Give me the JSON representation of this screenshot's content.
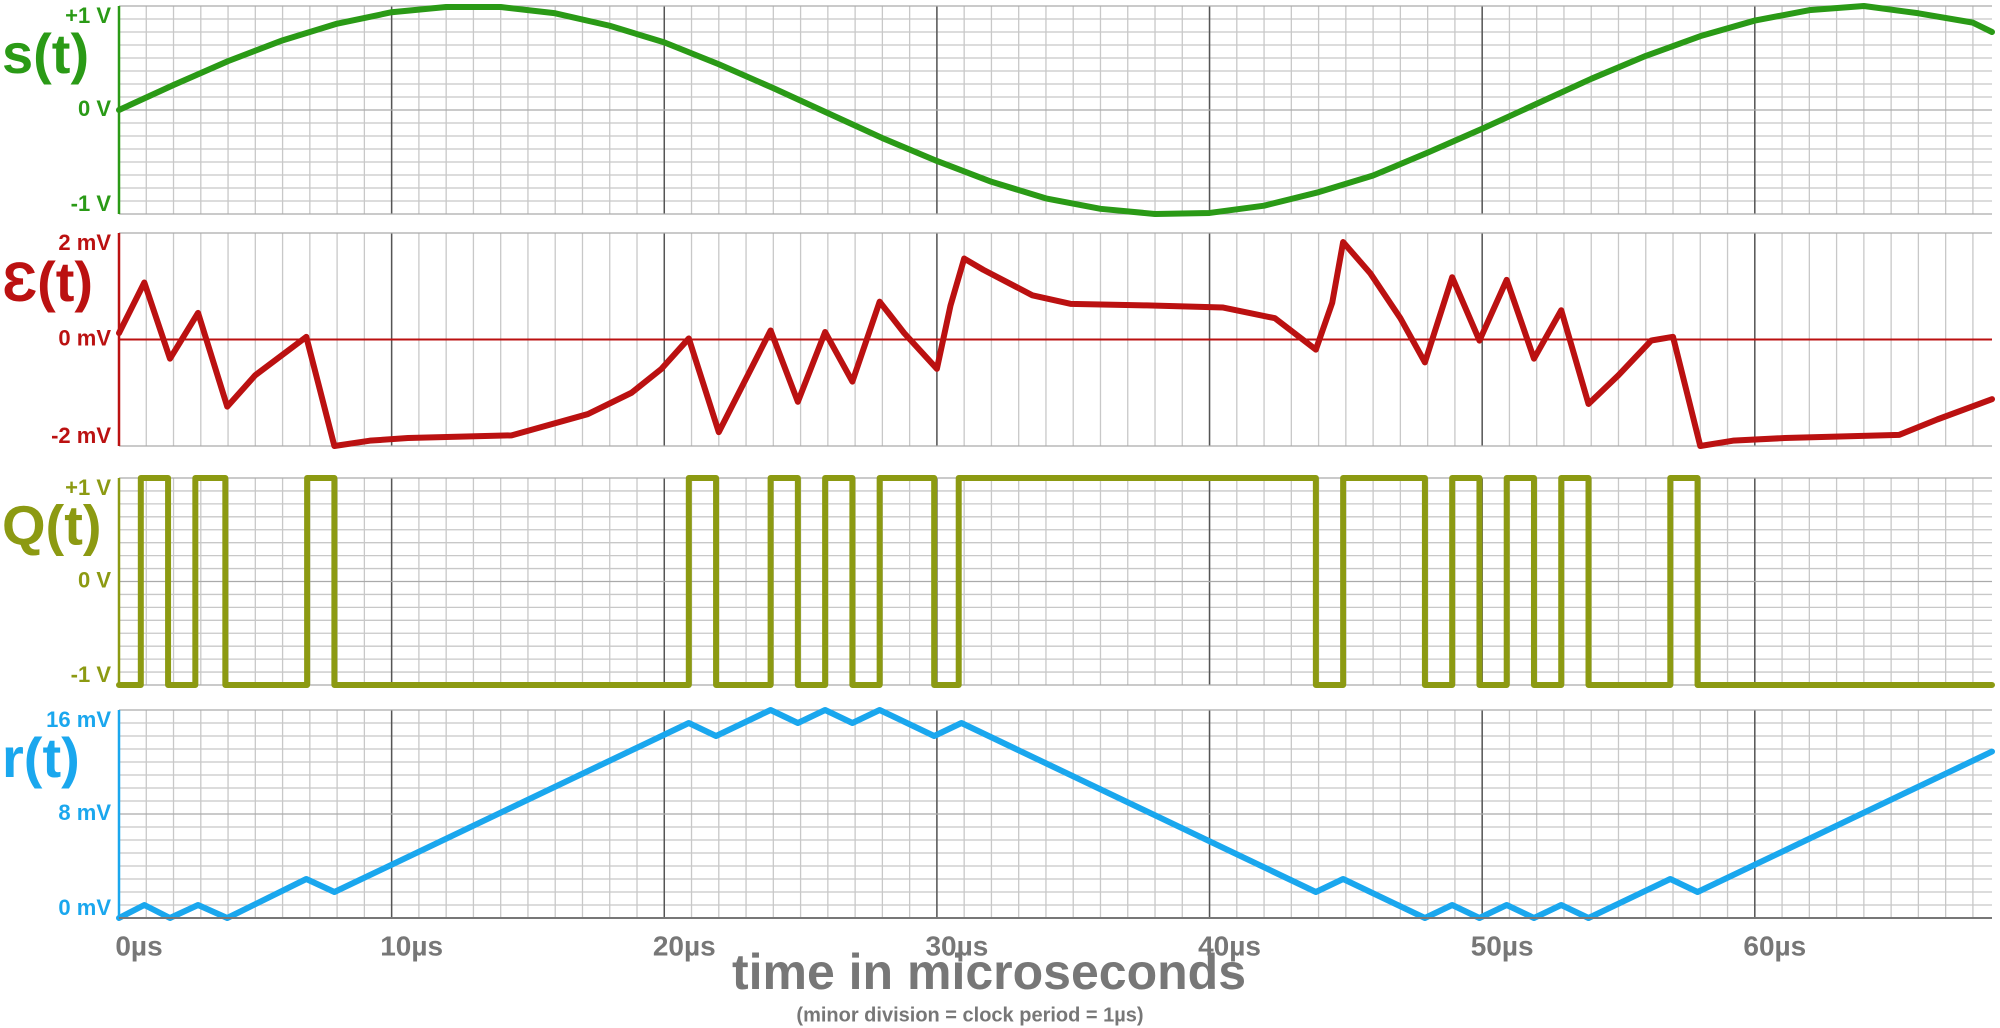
{
  "chart_data": [
    {
      "type": "line",
      "ylabel": "s(t)",
      "color": "#2a9a16",
      "xlim": [
        0,
        68.7
      ],
      "ylim": [
        -1,
        1
      ],
      "yticks": [
        {
          "value": -1,
          "label": "-1 V"
        },
        {
          "value": 0,
          "label": "0 V"
        },
        {
          "value": 1,
          "label": "+1 V"
        }
      ],
      "x": [
        0,
        2,
        4,
        6,
        8,
        10,
        12,
        14,
        16,
        18,
        20,
        22,
        24,
        26,
        28,
        30,
        32,
        34,
        36,
        38,
        40,
        42,
        44,
        46,
        48,
        50,
        52,
        54,
        56,
        58,
        60,
        62,
        64,
        66,
        68,
        68.7
      ],
      "values": [
        0,
        0.24,
        0.47,
        0.67,
        0.83,
        0.94,
        0.99,
        0.99,
        0.93,
        0.81,
        0.65,
        0.44,
        0.21,
        -0.03,
        -0.27,
        -0.49,
        -0.69,
        -0.85,
        -0.95,
        -1,
        -0.99,
        -0.92,
        -0.79,
        -0.63,
        -0.41,
        -0.18,
        0.06,
        0.3,
        0.52,
        0.71,
        0.86,
        0.96,
        1,
        0.93,
        0.84,
        0.75
      ]
    },
    {
      "type": "line",
      "ylabel": "Ɛ(t)",
      "color": "#bb1111",
      "zero_line": true,
      "xlim": [
        0,
        68.7
      ],
      "ylim": [
        -2,
        2
      ],
      "yticks": [
        {
          "value": -2,
          "label": "-2 mV"
        },
        {
          "value": 0,
          "label": "0 mV"
        },
        {
          "value": 2,
          "label": "2 mV"
        }
      ],
      "x": [
        0,
        0.93,
        1.87,
        2.9,
        3.97,
        5,
        6.87,
        7.9,
        9.2,
        10.6,
        14.4,
        17.2,
        18.8,
        19.9,
        20.9,
        22,
        23.9,
        24.9,
        25.9,
        26.9,
        27.9,
        28.8,
        30,
        30.5,
        31,
        31.7,
        33.5,
        34.9,
        37.7,
        40.5,
        42.4,
        43.9,
        44.5,
        44.9,
        45.9,
        47,
        47.9,
        48.9,
        49.9,
        50.9,
        51.9,
        52.9,
        53.9,
        55,
        56.2,
        57,
        58,
        59.2,
        61.1,
        65.3,
        66.7,
        68.7
      ],
      "values": [
        0.12,
        1.07,
        -0.36,
        0.5,
        -1.26,
        -0.67,
        0.05,
        -2,
        -1.9,
        -1.85,
        -1.8,
        -1.4,
        -1,
        -0.55,
        0.02,
        -1.74,
        0.17,
        -1.17,
        0.14,
        -0.79,
        0.71,
        0.12,
        -0.55,
        0.64,
        1.52,
        1.31,
        0.83,
        0.67,
        0.64,
        0.6,
        0.4,
        -0.19,
        0.69,
        1.83,
        1.24,
        0.4,
        -0.43,
        1.17,
        -0.02,
        1.12,
        -0.36,
        0.55,
        -1.21,
        -0.67,
        -0.02,
        0.05,
        -2,
        -1.9,
        -1.85,
        -1.79,
        -1.5,
        -1.12
      ]
    },
    {
      "type": "step",
      "ylabel": "Q(t)",
      "color": "#8c9a12",
      "xlim": [
        0,
        68.7
      ],
      "ylim": [
        -1,
        1
      ],
      "yticks": [
        {
          "value": -1,
          "label": "-1 V"
        },
        {
          "value": 0,
          "label": "0 V"
        },
        {
          "value": 1,
          "label": "+1 V"
        }
      ],
      "x": [
        0,
        0.8,
        1.8,
        2.8,
        3.9,
        6.9,
        7.9,
        20.9,
        21.9,
        23.9,
        24.9,
        25.9,
        26.9,
        27.9,
        29.9,
        30.8,
        43.9,
        44.9,
        47.9,
        48.9,
        49.9,
        50.9,
        51.9,
        52.9,
        53.9,
        56.9,
        57.9,
        68.7
      ],
      "values": [
        -1,
        1,
        -1,
        1,
        -1,
        1,
        -1,
        1,
        -1,
        1,
        -1,
        1,
        -1,
        1,
        -1,
        1,
        -1,
        1,
        -1,
        1,
        -1,
        1,
        -1,
        1,
        -1,
        1,
        -1,
        -1
      ]
    },
    {
      "type": "line",
      "ylabel": "r(t)",
      "color": "#1aa7ee",
      "xlim": [
        0,
        68.7
      ],
      "ylim": [
        0,
        16
      ],
      "yticks": [
        {
          "value": 0,
          "label": "0 mV"
        },
        {
          "value": 8,
          "label": "8 mV"
        },
        {
          "value": 16,
          "label": "16 mV"
        }
      ],
      "xticks": [
        {
          "value": 0,
          "label": "0µs"
        },
        {
          "value": 10,
          "label": "10µs"
        },
        {
          "value": 20,
          "label": "20µs"
        },
        {
          "value": 30,
          "label": "30µs"
        },
        {
          "value": 40,
          "label": "40µs"
        },
        {
          "value": 50,
          "label": "50µs"
        },
        {
          "value": 60,
          "label": "60µs"
        }
      ],
      "xlabel": "time in microseconds",
      "note": "(minor division = clock period = 1µs)",
      "x": [
        0,
        0.93,
        1.87,
        2.9,
        3.97,
        6.87,
        7.9,
        20.9,
        21.9,
        23.9,
        24.9,
        25.9,
        26.9,
        27.9,
        29.9,
        30.9,
        43.9,
        44.9,
        47.9,
        48.9,
        49.9,
        50.9,
        51.9,
        52.9,
        53.9,
        56.9,
        57.9,
        68.7
      ],
      "values": [
        0,
        1,
        0,
        1,
        0,
        3,
        2,
        15,
        14,
        16,
        15,
        16,
        15,
        16,
        14,
        15,
        2,
        3,
        0,
        1,
        0,
        1,
        0,
        1,
        0,
        3,
        2,
        12.8
      ]
    }
  ]
}
